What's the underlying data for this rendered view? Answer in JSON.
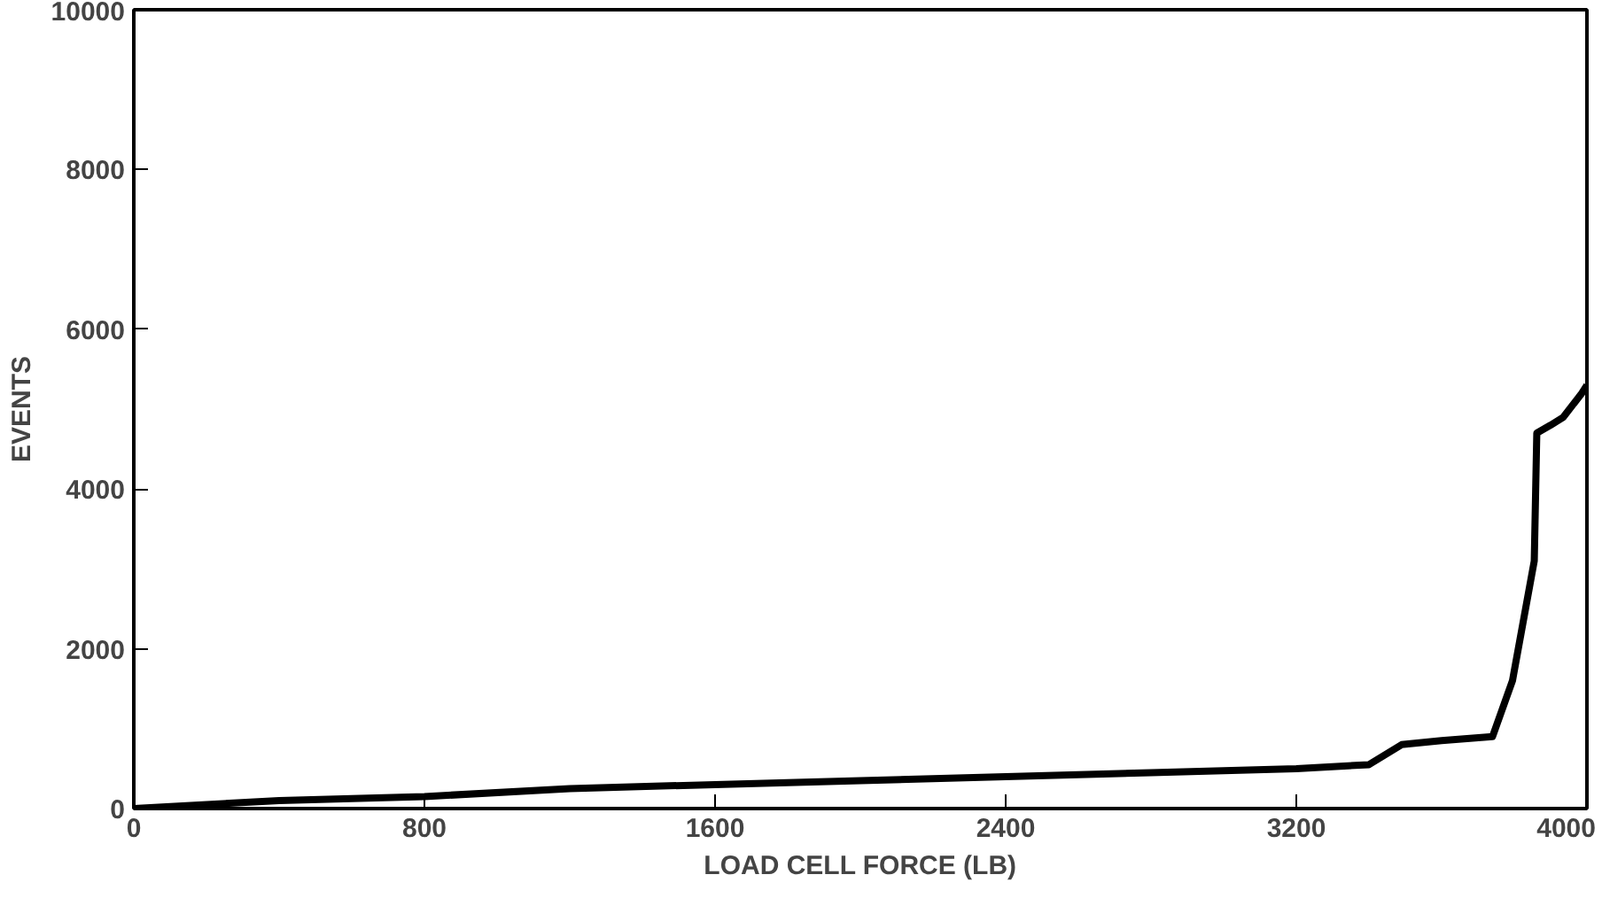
{
  "chart_data": {
    "type": "line",
    "xlabel": "LOAD CELL FORCE (LB)",
    "ylabel": "EVENTS",
    "xlim": [
      0,
      4000
    ],
    "ylim": [
      0,
      10000
    ],
    "xticks": [
      0,
      800,
      1600,
      2400,
      3200,
      4000
    ],
    "yticks": [
      0,
      2000,
      4000,
      6000,
      8000,
      10000
    ],
    "grid": false,
    "series": [
      {
        "color": "#000000",
        "x": [
          0,
          400,
          800,
          1200,
          1600,
          2000,
          2400,
          2800,
          3200,
          3400,
          3490,
          3600,
          3740,
          3795,
          3855,
          3862,
          3900,
          3935,
          3986,
          4000
        ],
        "values": [
          0,
          100,
          150,
          250,
          300,
          350,
          400,
          450,
          500,
          550,
          800,
          850,
          900,
          1600,
          3100,
          4700,
          4800,
          4900,
          5200,
          5300
        ]
      }
    ]
  }
}
